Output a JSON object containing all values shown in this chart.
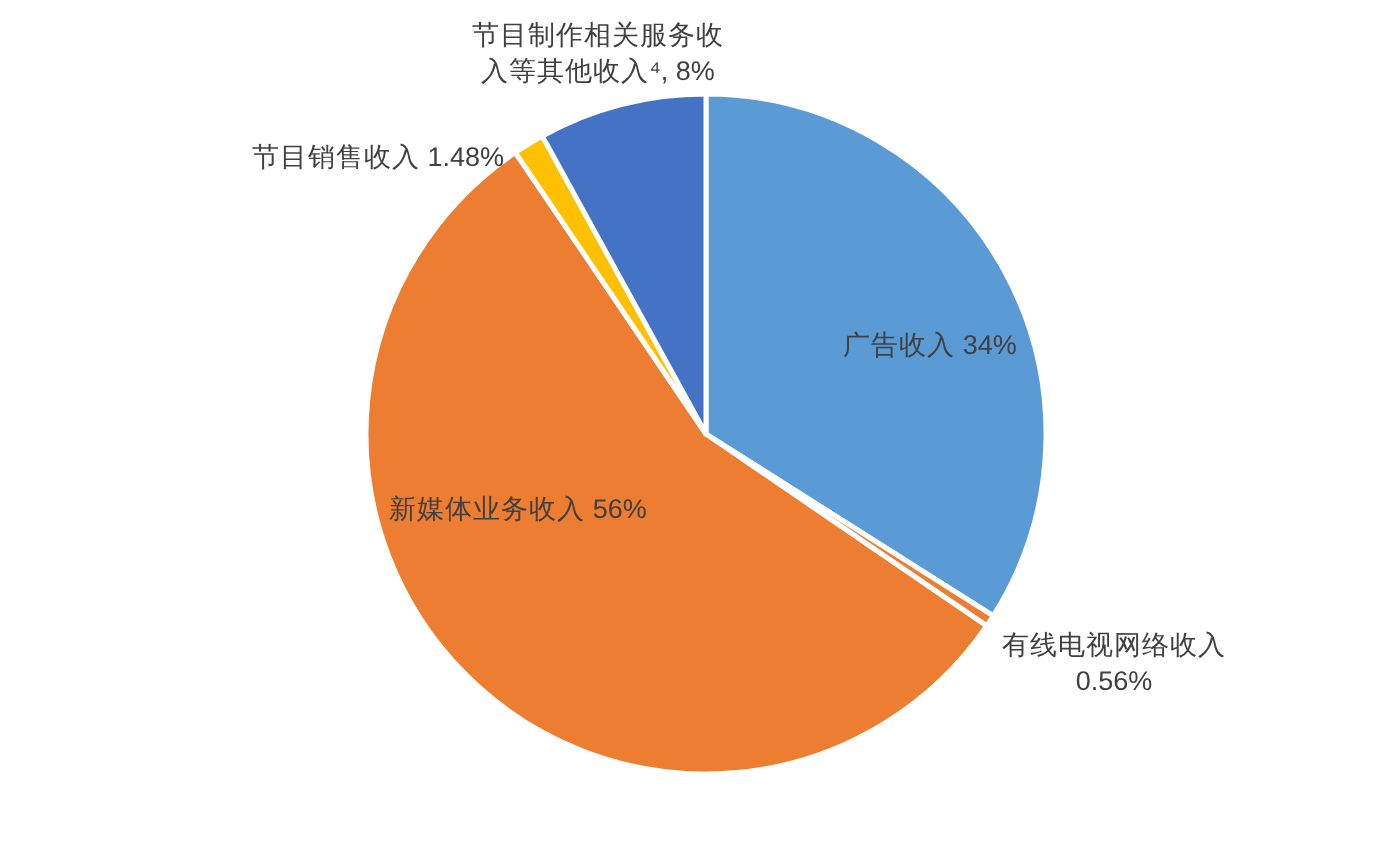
{
  "chart_data": {
    "type": "pie",
    "categories": [
      "广告收入",
      "有线电视网络收入",
      "新媒体业务收入",
      "节目销售收入",
      "节目制作相关服务收入等其他收入⁴"
    ],
    "values": [
      34,
      0.56,
      56,
      1.48,
      8
    ],
    "colors": [
      "#5b9bd5",
      "#ed7d31",
      "#ed7d31",
      "#ffc000",
      "#4472c4"
    ],
    "value_labels": [
      "34%",
      "0.56%",
      "56%",
      "1.48%",
      "8%"
    ]
  }
}
